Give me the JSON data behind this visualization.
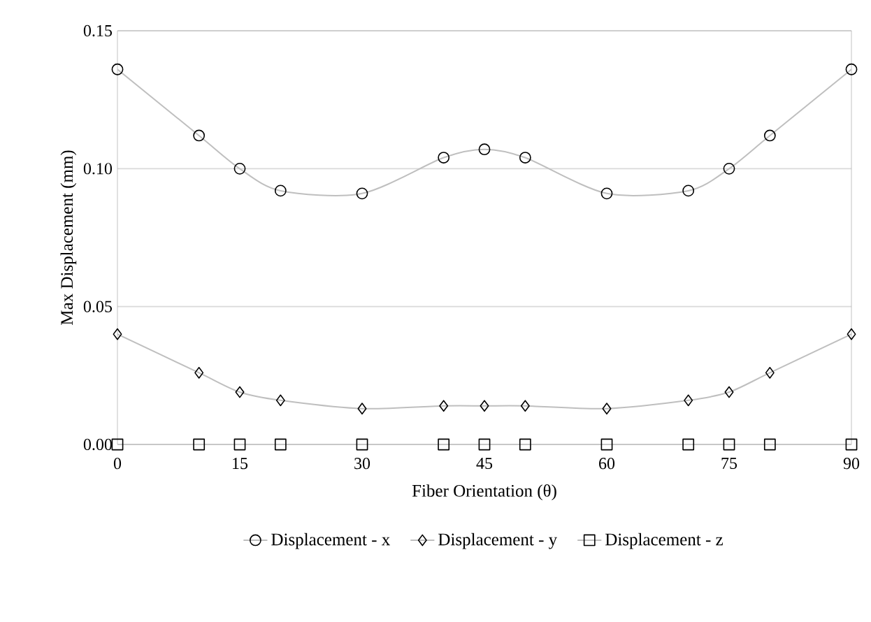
{
  "chart_data": {
    "type": "line",
    "xlabel": "Fiber Orientation (θ)",
    "ylabel": "Max Displacement (mm)",
    "x": [
      0,
      10,
      15,
      20,
      30,
      40,
      45,
      50,
      60,
      70,
      75,
      80,
      90
    ],
    "xlim": [
      0,
      90
    ],
    "xticks": [
      0,
      15,
      30,
      45,
      60,
      75,
      90
    ],
    "ylim": [
      0,
      0.15
    ],
    "yticks": [
      {
        "value": 0,
        "label": "0.00"
      },
      {
        "value": 0.05,
        "label": "0.05"
      },
      {
        "value": 0.1,
        "label": "0.10"
      },
      {
        "value": 0.15,
        "label": "0.15"
      }
    ],
    "grid": "y",
    "legend": "bottom",
    "series": [
      {
        "name": "Displacement - x",
        "color": "#bfbfbf",
        "marker": "circle",
        "values": [
          0.136,
          0.112,
          0.1,
          0.092,
          0.091,
          0.104,
          0.107,
          0.104,
          0.091,
          0.092,
          0.1,
          0.112,
          0.136
        ]
      },
      {
        "name": "Displacement - y",
        "color": "#bfbfbf",
        "marker": "diamond",
        "values": [
          0.04,
          0.026,
          0.019,
          0.016,
          0.013,
          0.014,
          0.014,
          0.014,
          0.013,
          0.016,
          0.019,
          0.026,
          0.04
        ]
      },
      {
        "name": "Displacement - z",
        "color": "#bfbfbf",
        "marker": "square",
        "values": [
          0,
          0,
          0,
          0,
          0,
          0,
          0,
          0,
          0,
          0,
          0,
          0,
          0
        ]
      }
    ]
  }
}
